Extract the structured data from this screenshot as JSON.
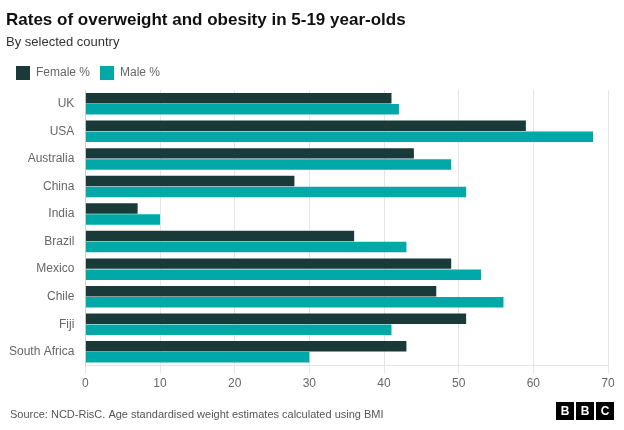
{
  "chart_data": {
    "type": "bar",
    "orientation": "horizontal",
    "title": "Rates of overweight and obesity in 5-19 year-olds",
    "subtitle": "By selected country",
    "categories": [
      "UK",
      "USA",
      "Australia",
      "China",
      "India",
      "Brazil",
      "Mexico",
      "Chile",
      "Fiji",
      "South Africa"
    ],
    "series": [
      {
        "name": "Female %",
        "color": "#1a3a3a",
        "values": [
          41,
          59,
          44,
          28,
          7,
          36,
          49,
          47,
          51,
          43
        ]
      },
      {
        "name": "Male %",
        "color": "#00a8a8",
        "values": [
          42,
          68,
          49,
          51,
          10,
          43,
          53,
          56,
          41,
          30
        ]
      }
    ],
    "xlim": [
      0,
      70
    ],
    "xticks": [
      0,
      10,
      20,
      30,
      40,
      50,
      60,
      70
    ],
    "grid": true,
    "legend": "top",
    "annotations": [
      "Source: NCD-RisC. Age standardised weight estimates calculated using BMI",
      "BBC"
    ]
  }
}
